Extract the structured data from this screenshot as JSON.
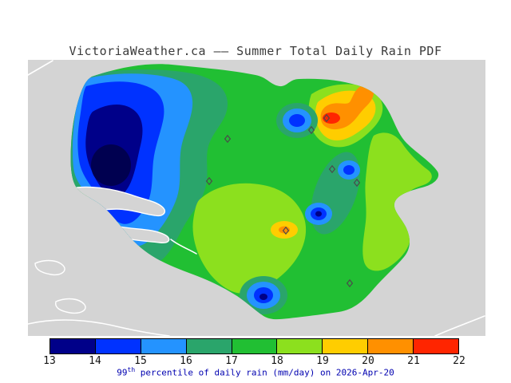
{
  "title": "VictoriaWeather.ca –– Summer Total Daily Rain PDF",
  "caption": {
    "prefix": "99",
    "superscript": "th",
    "suffix": " percentile of daily rain (mm/day) on 2026-Apr-20"
  },
  "colorbar": {
    "ticks": [
      "13",
      "14",
      "15",
      "16",
      "17",
      "18",
      "19",
      "20",
      "21",
      "22"
    ],
    "colors": [
      "#000089",
      "#0032ff",
      "#2493ff",
      "#2aa56b",
      "#21bf33",
      "#8ce01e",
      "#ffcd00",
      "#ff9000",
      "#ff2500"
    ],
    "below_min_color": "#000050"
  },
  "map": {
    "background_color": "#d4d4d4",
    "stations": [
      [
        285,
        174
      ],
      [
        390,
        163
      ],
      [
        409,
        148
      ],
      [
        416,
        212
      ],
      [
        447,
        229
      ],
      [
        358,
        289
      ],
      [
        262,
        227
      ],
      [
        438,
        355
      ]
    ]
  },
  "chart_data": {
    "type": "heatmap",
    "subtype": "filled-contour-map",
    "title": "VictoriaWeather.ca –– Summer Total Daily Rain PDF",
    "variable": "99th percentile of daily rain",
    "units": "mm/day",
    "date": "2026-Apr-20",
    "scale": {
      "min": 13,
      "max": 22,
      "step": 1,
      "levels": [
        13,
        14,
        15,
        16,
        17,
        18,
        19,
        20,
        21,
        22
      ],
      "colors": [
        "#000089",
        "#0032ff",
        "#2493ff",
        "#2aa56b",
        "#21bf33",
        "#8ce01e",
        "#ffcd00",
        "#ff9000",
        "#ff2500"
      ],
      "legend_position": "bottom"
    },
    "station_markers": 8,
    "features": [
      {
        "area": "west",
        "value_mm_per_day": "13-14",
        "description": "broad minimum, dark navy core"
      },
      {
        "area": "northeast",
        "value_mm_per_day": "21-22",
        "description": "maximum bullseye, red core with orange/yellow rings"
      },
      {
        "area": "center and south",
        "value_mm_per_day": "17-19",
        "description": "mostly green to light green"
      },
      {
        "area": "center small high",
        "value_mm_per_day": "19-20",
        "description": "small yellow/orange spot"
      },
      {
        "area": "interior local lows",
        "value_mm_per_day": "14-15",
        "description": "several small blue bullseyes (north-center, east pair, south coast)"
      },
      {
        "area": "east coast strip",
        "value_mm_per_day": "18-19",
        "description": "light green band along eastern shore"
      }
    ]
  }
}
